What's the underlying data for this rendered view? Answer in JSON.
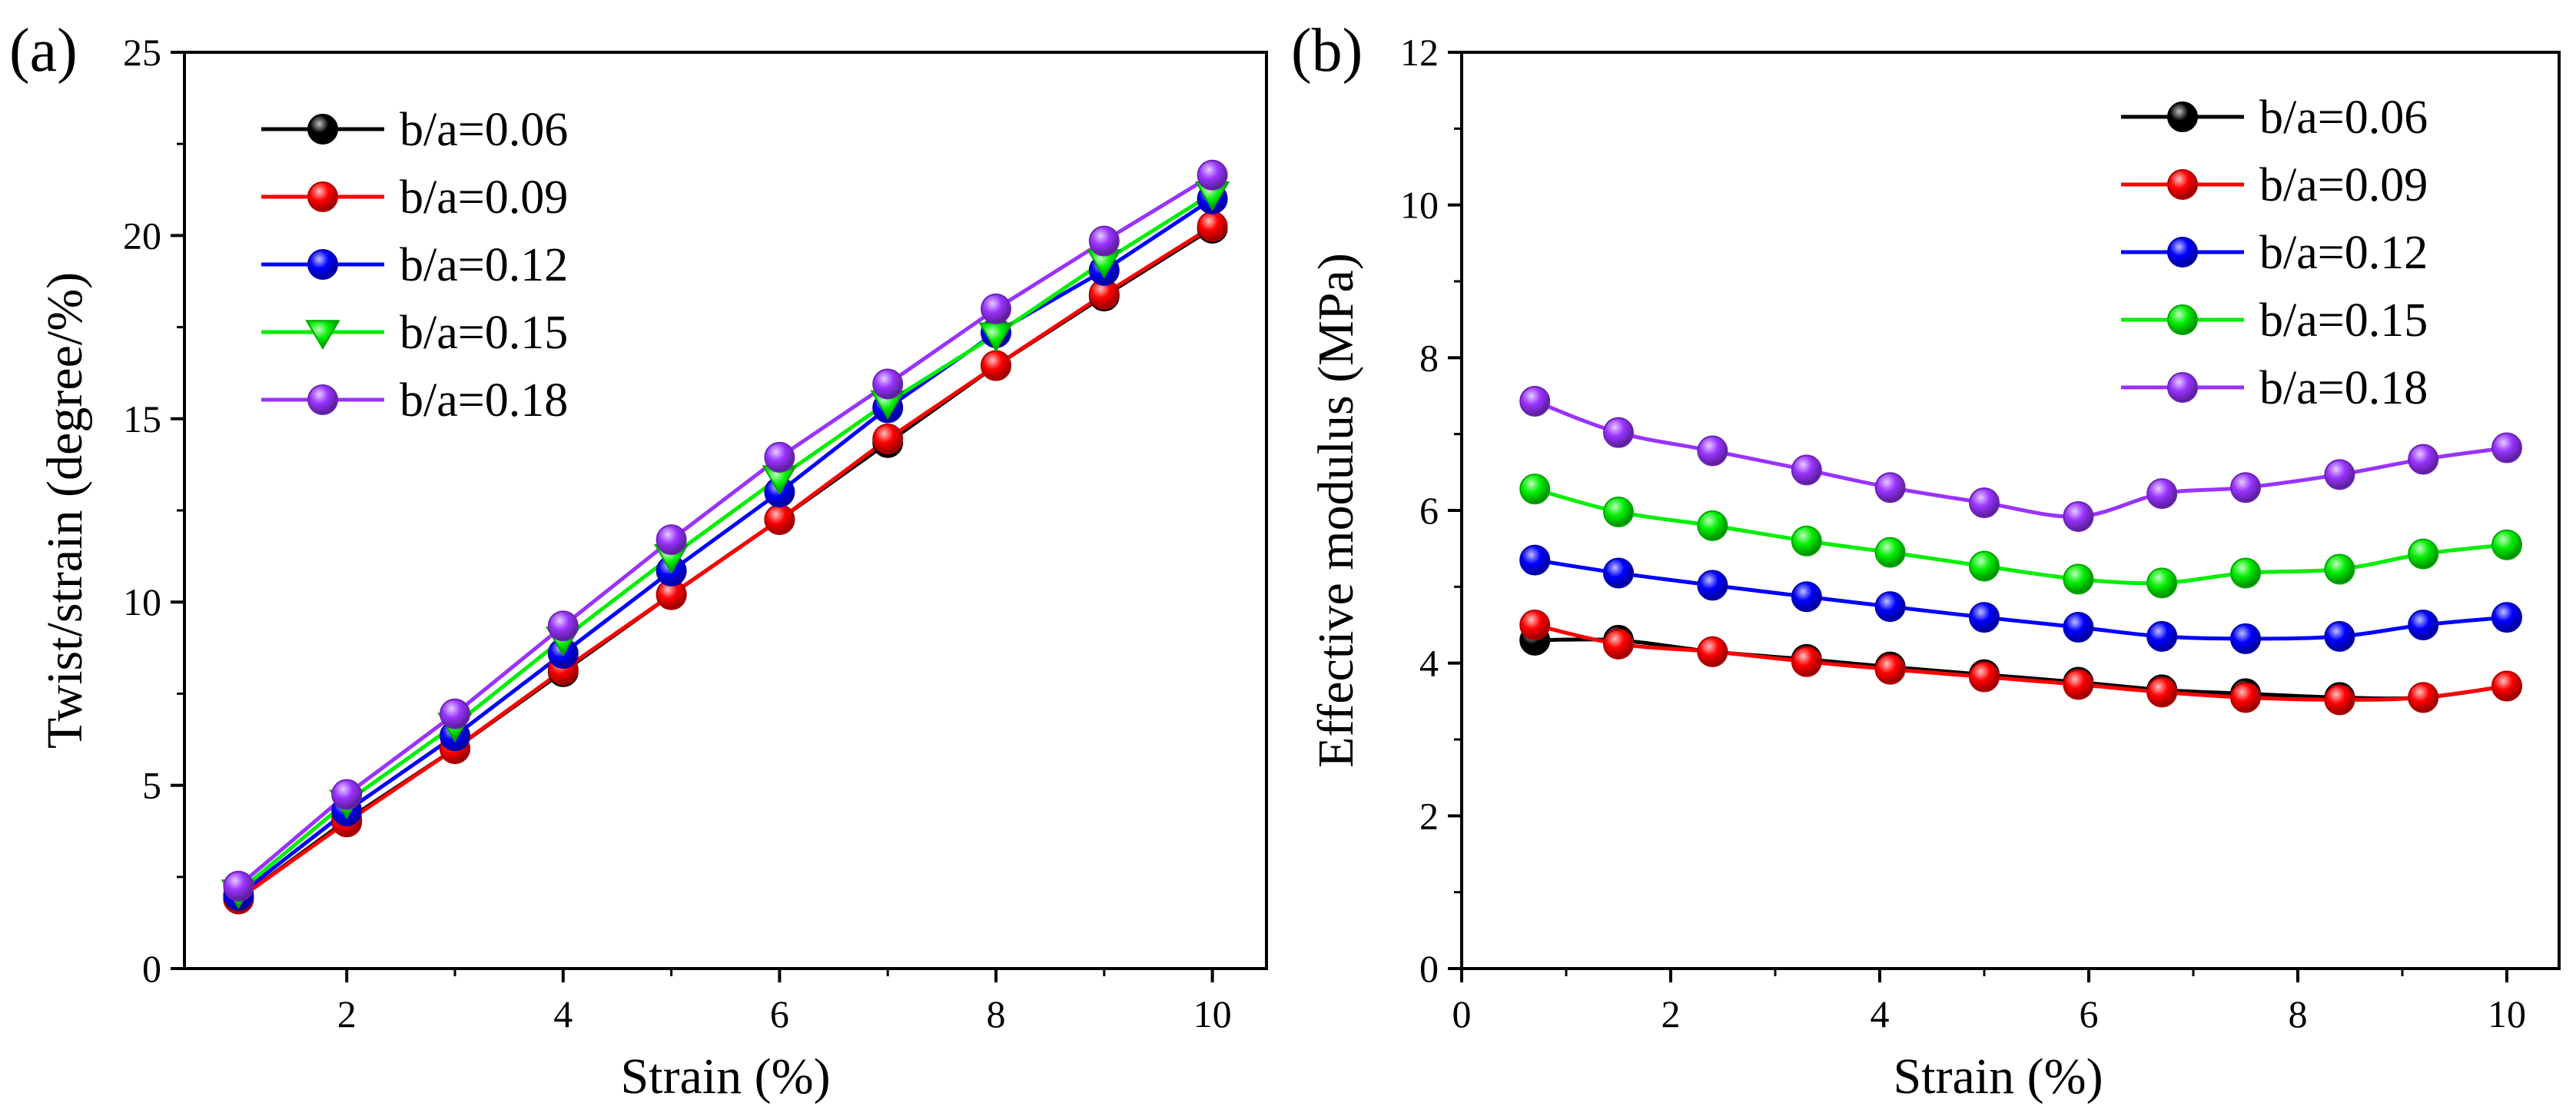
{
  "chart_data": [
    {
      "type": "line",
      "panel_label": "(a)",
      "xlabel": "Strain (%)",
      "ylabel": "Twist/strain (degree/%)",
      "xlim": [
        0.5,
        10.5
      ],
      "ylim": [
        0,
        25
      ],
      "xticks": [
        2,
        4,
        6,
        8,
        10
      ],
      "yticks": [
        0,
        5,
        10,
        15,
        20,
        25
      ],
      "legend_position": "top-left",
      "x": [
        1,
        2,
        3,
        4,
        5,
        6,
        7,
        8,
        9,
        10
      ],
      "series": [
        {
          "name": "b/a=0.06",
          "color": "#000000",
          "marker": "circle",
          "values": [
            1.9,
            4.05,
            6.0,
            8.1,
            10.2,
            12.25,
            14.35,
            16.45,
            18.35,
            20.2
          ]
        },
        {
          "name": "b/a=0.09",
          "color": "#ff0000",
          "marker": "circle",
          "values": [
            1.9,
            4.0,
            6.0,
            8.15,
            10.2,
            12.25,
            14.45,
            16.45,
            18.4,
            20.25
          ]
        },
        {
          "name": "b/a=0.12",
          "color": "#0000ff",
          "marker": "circle",
          "values": [
            2.0,
            4.3,
            6.35,
            8.6,
            10.85,
            13.0,
            15.3,
            17.35,
            19.05,
            21.0
          ]
        },
        {
          "name": "b/a=0.15",
          "color": "#00ee00",
          "marker": "triangle-down",
          "values": [
            2.1,
            4.55,
            6.65,
            9.0,
            11.25,
            13.4,
            15.45,
            17.3,
            19.3,
            21.15
          ]
        },
        {
          "name": "b/a=0.18",
          "color": "#9933ff",
          "marker": "circle",
          "values": [
            2.25,
            4.75,
            6.95,
            9.35,
            11.7,
            13.95,
            15.95,
            18.0,
            19.85,
            21.65
          ]
        }
      ]
    },
    {
      "type": "line",
      "panel_label": "(b)",
      "xlabel": "Strain (%)",
      "ylabel": "Effective modulus (MPa)",
      "xlim": [
        0,
        10.5
      ],
      "ylim": [
        0,
        12
      ],
      "xticks": [
        0,
        2,
        4,
        6,
        8,
        10
      ],
      "yticks": [
        0,
        2,
        4,
        6,
        8,
        10,
        12
      ],
      "legend_position": "top-right",
      "x": [
        0.7,
        1.5,
        2.4,
        3.3,
        4.1,
        5.0,
        5.9,
        6.7,
        7.5,
        8.4,
        9.2,
        10.0
      ],
      "series": [
        {
          "name": "b/a=0.06",
          "color": "#000000",
          "marker": "circle",
          "values": [
            4.3,
            4.3,
            4.15,
            4.05,
            3.95,
            3.85,
            3.75,
            3.65,
            3.6,
            3.55,
            3.55,
            3.7
          ]
        },
        {
          "name": "b/a=0.09",
          "color": "#ff0000",
          "marker": "circle",
          "values": [
            4.5,
            4.25,
            4.15,
            4.02,
            3.92,
            3.82,
            3.72,
            3.62,
            3.55,
            3.52,
            3.55,
            3.7
          ]
        },
        {
          "name": "b/a=0.12",
          "color": "#0000ff",
          "marker": "circle",
          "values": [
            5.35,
            5.18,
            5.02,
            4.87,
            4.74,
            4.6,
            4.47,
            4.35,
            4.32,
            4.35,
            4.5,
            4.6
          ]
        },
        {
          "name": "b/a=0.15",
          "color": "#00ee00",
          "marker": "circle",
          "values": [
            6.28,
            5.98,
            5.8,
            5.6,
            5.45,
            5.27,
            5.1,
            5.05,
            5.18,
            5.23,
            5.43,
            5.55
          ]
        },
        {
          "name": "b/a=0.18",
          "color": "#9933ff",
          "marker": "circle",
          "values": [
            7.43,
            7.02,
            6.78,
            6.53,
            6.3,
            6.1,
            5.92,
            6.22,
            6.3,
            6.47,
            6.67,
            6.82
          ]
        }
      ]
    }
  ]
}
